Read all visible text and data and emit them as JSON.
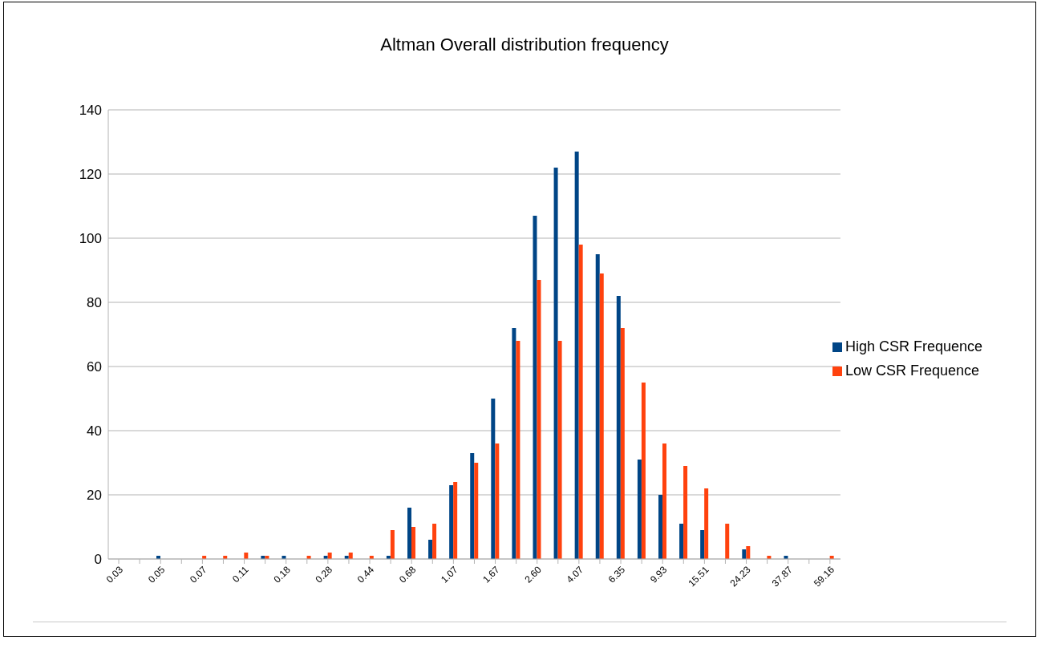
{
  "chart_data": {
    "type": "bar",
    "title": "Altman Overall distribution frequency",
    "categories": [
      "0.03",
      null,
      "0.05",
      null,
      "0.07",
      null,
      "0.11",
      null,
      "0.18",
      null,
      "0.28",
      null,
      "0.44",
      null,
      "0.68",
      null,
      "1.07",
      null,
      "1.67",
      null,
      "2.60",
      null,
      "4.07",
      null,
      "6.35",
      null,
      "9.93",
      null,
      "15.51",
      null,
      "24.23",
      null,
      "37.87",
      null,
      "59.16"
    ],
    "series": [
      {
        "name": "High CSR Frequence",
        "color": "#004586",
        "values": [
          0,
          0,
          1,
          0,
          0,
          0,
          0,
          1,
          1,
          0,
          1,
          1,
          0,
          1,
          16,
          6,
          23,
          33,
          50,
          72,
          107,
          122,
          127,
          95,
          82,
          31,
          20,
          11,
          9,
          0,
          3,
          0,
          1,
          0,
          0
        ]
      },
      {
        "name": "Low CSR Frequence",
        "color": "#ff420e",
        "values": [
          0,
          0,
          0,
          0,
          1,
          1,
          2,
          1,
          0,
          1,
          2,
          2,
          1,
          9,
          10,
          11,
          24,
          30,
          36,
          68,
          87,
          68,
          98,
          89,
          72,
          55,
          36,
          29,
          22,
          11,
          4,
          1,
          0,
          0,
          1
        ]
      }
    ],
    "ylim": [
      0,
      140
    ],
    "yticks": [
      0,
      20,
      40,
      60,
      80,
      100,
      120,
      140
    ],
    "grid": "y",
    "legend": "right"
  }
}
